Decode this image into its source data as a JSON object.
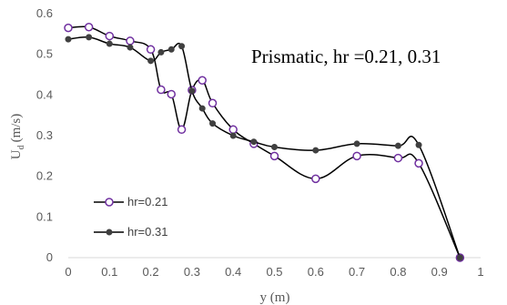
{
  "chart_data": {
    "type": "line",
    "title": "",
    "annotation": "Prismatic, hr =0.21, 0.31",
    "xlabel": "y (m)",
    "ylabel_main": "U",
    "ylabel_sub": "d",
    "ylabel_unit": "(m/s)",
    "xlim": [
      0,
      1
    ],
    "ylim": [
      0,
      0.6
    ],
    "x_ticks": [
      0,
      0.1,
      0.2,
      0.3,
      0.4,
      0.5,
      0.6,
      0.7,
      0.8,
      0.9,
      1
    ],
    "x_tick_labels": [
      "0",
      "0.1",
      "0.2",
      "0.3",
      "0.4",
      "0.5",
      "0.6",
      "0.7",
      "0.8",
      "0.9",
      "1"
    ],
    "y_ticks": [
      0,
      0.1,
      0.2,
      0.3,
      0.4,
      0.5,
      0.6
    ],
    "y_tick_labels": [
      "0",
      "0.1",
      "0.2",
      "0.3",
      "0.4",
      "0.5",
      "0.6"
    ],
    "grid": false,
    "legend_position": "bottom-left",
    "series": [
      {
        "name": "hr=0.21",
        "marker": "open-circle",
        "line_color": "#000000",
        "marker_color": "#7030a0",
        "x": [
          0,
          0.05,
          0.1,
          0.15,
          0.2,
          0.225,
          0.25,
          0.275,
          0.3,
          0.325,
          0.35,
          0.4,
          0.45,
          0.5,
          0.6,
          0.7,
          0.8,
          0.85,
          0.95
        ],
        "y": [
          0.565,
          0.567,
          0.545,
          0.533,
          0.512,
          0.413,
          0.402,
          0.315,
          0.412,
          0.436,
          0.38,
          0.315,
          0.28,
          0.25,
          0.194,
          0.25,
          0.245,
          0.232,
          0
        ]
      },
      {
        "name": "hr=0.31",
        "marker": "filled-circle",
        "line_color": "#000000",
        "marker_color": "#404040",
        "x": [
          0,
          0.05,
          0.1,
          0.15,
          0.2,
          0.225,
          0.25,
          0.275,
          0.3,
          0.325,
          0.35,
          0.4,
          0.45,
          0.5,
          0.6,
          0.7,
          0.8,
          0.85,
          0.95
        ],
        "y": [
          0.537,
          0.542,
          0.526,
          0.517,
          0.484,
          0.505,
          0.512,
          0.52,
          0.41,
          0.367,
          0.33,
          0.3,
          0.285,
          0.272,
          0.264,
          0.28,
          0.275,
          0.277,
          0
        ]
      }
    ]
  }
}
